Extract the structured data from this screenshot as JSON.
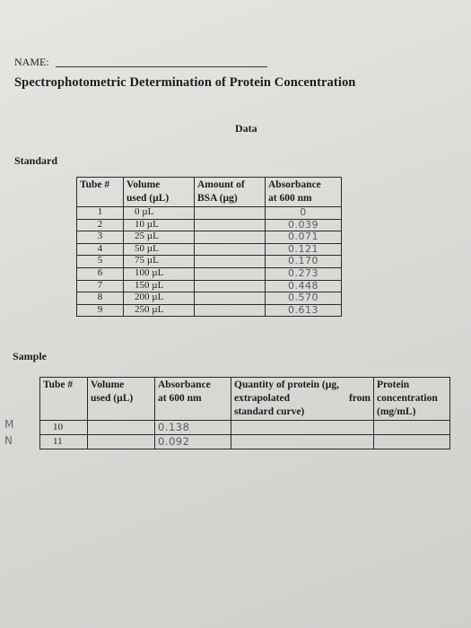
{
  "header": {
    "name_label": "NAME:",
    "title": "Spectrophotometric Determination of Protein Concentration",
    "data_heading": "Data"
  },
  "standard": {
    "label": "Standard",
    "columns": [
      "Tube #",
      "Volume used (µL)",
      "Amount of BSA (µg)",
      "Absorbance at 600 nm"
    ],
    "column_lines": [
      [
        "Tube #"
      ],
      [
        "Volume",
        "used (µL)"
      ],
      [
        "Amount of",
        "BSA (µg)"
      ],
      [
        "Absorbance",
        "at 600 nm"
      ]
    ],
    "rows": [
      {
        "tube": "1",
        "volume": "0 µL",
        "bsa": "",
        "absorbance": "0"
      },
      {
        "tube": "2",
        "volume": "10 µL",
        "bsa": "",
        "absorbance": "0.039"
      },
      {
        "tube": "3",
        "volume": "25 µL",
        "bsa": "",
        "absorbance": "0.071"
      },
      {
        "tube": "4",
        "volume": "50 µL",
        "bsa": "",
        "absorbance": "0.121"
      },
      {
        "tube": "5",
        "volume": "75 µL",
        "bsa": "",
        "absorbance": "0.170"
      },
      {
        "tube": "6",
        "volume": "100 µL",
        "bsa": "",
        "absorbance": "0.273"
      },
      {
        "tube": "7",
        "volume": "150 µL",
        "bsa": "",
        "absorbance": "0.448"
      },
      {
        "tube": "8",
        "volume": "200 µL",
        "bsa": "",
        "absorbance": "0.570"
      },
      {
        "tube": "9",
        "volume": "250 µL",
        "bsa": "",
        "absorbance": "0.613"
      }
    ]
  },
  "sample": {
    "label": "Sample",
    "column_lines": [
      [
        "Tube #"
      ],
      [
        "Volume",
        "used (µL)"
      ],
      [
        "Absorbance",
        "at 600 nm"
      ],
      [
        "Quantity of protein (µg,",
        "extrapolated from",
        "standard curve)"
      ],
      [
        "Protein",
        "concentration",
        "(mg/mL)"
      ]
    ],
    "qty_line2_left": "extrapolated",
    "qty_line2_right": "from",
    "rows": [
      {
        "tube": "10",
        "volume": "",
        "absorbance": "0.138",
        "quantity": "",
        "concentration": "",
        "margin_mark": "M"
      },
      {
        "tube": "11",
        "volume": "",
        "absorbance": "0.092",
        "quantity": "",
        "concentration": "",
        "margin_mark": "N"
      }
    ]
  },
  "colors": {
    "handwriting": "#5a5a60",
    "paper": "#dadad7",
    "ink": "#1c1c1c"
  }
}
